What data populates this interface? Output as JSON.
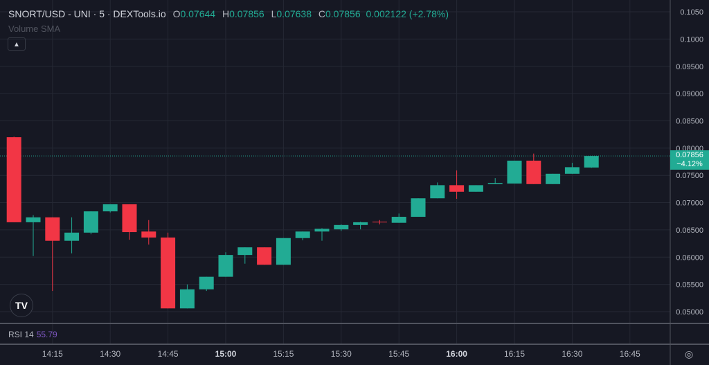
{
  "legend": {
    "title": "SNORT/USD - UNI · 5 · DEXTools.io",
    "o_label": "O",
    "o": "0.07644",
    "h_label": "H",
    "h": "0.07856",
    "l_label": "L",
    "l": "0.07638",
    "c_label": "C",
    "c": "0.07856",
    "change": "0.002122 (+2.78%)",
    "volume_sma": "Volume SMA",
    "collapse_icon": "chevron-up-icon"
  },
  "rsi": {
    "label": "RSI 14",
    "value": "55.79"
  },
  "price_tag": {
    "price": "0.07856",
    "change": "−4.12%"
  },
  "logo": "TV",
  "colors": {
    "background": "#161823",
    "up": "#22ab94",
    "down": "#f23645",
    "grid": "#252834",
    "rsi": "#7e57c2"
  },
  "chart_data": {
    "type": "candlestick",
    "interval_minutes": 5,
    "ylim": [
      0.048,
      0.106
    ],
    "y_ticks": [
      "0.05000",
      "0.05500",
      "0.06000",
      "0.06500",
      "0.07000",
      "0.07500",
      "0.08000",
      "0.08500",
      "0.09000",
      "0.09500",
      "0.1000",
      "0.1050"
    ],
    "x_ticks": [
      {
        "label": "14:15",
        "bold": false
      },
      {
        "label": "14:30",
        "bold": false
      },
      {
        "label": "14:45",
        "bold": false
      },
      {
        "label": "15:00",
        "bold": true
      },
      {
        "label": "15:15",
        "bold": false
      },
      {
        "label": "15:30",
        "bold": false
      },
      {
        "label": "15:45",
        "bold": false
      },
      {
        "label": "16:00",
        "bold": true
      },
      {
        "label": "16:15",
        "bold": false
      },
      {
        "label": "16:30",
        "bold": false
      },
      {
        "label": "16:45",
        "bold": false
      }
    ],
    "x_range": [
      "14:00",
      "16:55"
    ],
    "last_price": 0.07856,
    "grid": true,
    "candles": [
      {
        "t": "14:05",
        "o": 0.082,
        "h": 0.0821,
        "l": 0.0664,
        "c": 0.0664
      },
      {
        "t": "14:10",
        "o": 0.0664,
        "h": 0.0677,
        "l": 0.0602,
        "c": 0.0673
      },
      {
        "t": "14:15",
        "o": 0.0673,
        "h": 0.0673,
        "l": 0.0538,
        "c": 0.063
      },
      {
        "t": "14:20",
        "o": 0.063,
        "h": 0.0673,
        "l": 0.0607,
        "c": 0.0645
      },
      {
        "t": "14:25",
        "o": 0.0645,
        "h": 0.0684,
        "l": 0.0642,
        "c": 0.0684
      },
      {
        "t": "14:30",
        "o": 0.0684,
        "h": 0.0697,
        "l": 0.0682,
        "c": 0.0697
      },
      {
        "t": "14:35",
        "o": 0.0697,
        "h": 0.0697,
        "l": 0.0632,
        "c": 0.0646
      },
      {
        "t": "14:40",
        "o": 0.0647,
        "h": 0.0668,
        "l": 0.0623,
        "c": 0.0636
      },
      {
        "t": "14:45",
        "o": 0.0636,
        "h": 0.0645,
        "l": 0.0506,
        "c": 0.0506
      },
      {
        "t": "14:50",
        "o": 0.0506,
        "h": 0.055,
        "l": 0.0506,
        "c": 0.0541
      },
      {
        "t": "14:55",
        "o": 0.0541,
        "h": 0.0564,
        "l": 0.0538,
        "c": 0.0564
      },
      {
        "t": "15:00",
        "o": 0.0564,
        "h": 0.0609,
        "l": 0.0564,
        "c": 0.0604
      },
      {
        "t": "15:05",
        "o": 0.0604,
        "h": 0.0618,
        "l": 0.0588,
        "c": 0.0618
      },
      {
        "t": "15:10",
        "o": 0.0618,
        "h": 0.0618,
        "l": 0.0586,
        "c": 0.0586
      },
      {
        "t": "15:15",
        "o": 0.0586,
        "h": 0.0635,
        "l": 0.0586,
        "c": 0.0635
      },
      {
        "t": "15:20",
        "o": 0.0635,
        "h": 0.0647,
        "l": 0.0631,
        "c": 0.0647
      },
      {
        "t": "15:25",
        "o": 0.0647,
        "h": 0.0653,
        "l": 0.063,
        "c": 0.0652
      },
      {
        "t": "15:30",
        "o": 0.0651,
        "h": 0.066,
        "l": 0.0648,
        "c": 0.0659
      },
      {
        "t": "15:35",
        "o": 0.0659,
        "h": 0.0665,
        "l": 0.0651,
        "c": 0.0664
      },
      {
        "t": "15:40",
        "o": 0.0665,
        "h": 0.0668,
        "l": 0.066,
        "c": 0.0664
      },
      {
        "t": "15:45",
        "o": 0.0663,
        "h": 0.068,
        "l": 0.0663,
        "c": 0.0674
      },
      {
        "t": "15:50",
        "o": 0.0674,
        "h": 0.0708,
        "l": 0.0674,
        "c": 0.0708
      },
      {
        "t": "15:55",
        "o": 0.0708,
        "h": 0.0737,
        "l": 0.0708,
        "c": 0.0732
      },
      {
        "t": "16:00",
        "o": 0.0732,
        "h": 0.0759,
        "l": 0.0707,
        "c": 0.072
      },
      {
        "t": "16:05",
        "o": 0.072,
        "h": 0.0732,
        "l": 0.072,
        "c": 0.0732
      },
      {
        "t": "16:10",
        "o": 0.0734,
        "h": 0.0745,
        "l": 0.0734,
        "c": 0.0736
      },
      {
        "t": "16:15",
        "o": 0.0735,
        "h": 0.0777,
        "l": 0.0735,
        "c": 0.0777
      },
      {
        "t": "16:20",
        "o": 0.0777,
        "h": 0.079,
        "l": 0.0734,
        "c": 0.0734
      },
      {
        "t": "16:25",
        "o": 0.0734,
        "h": 0.0753,
        "l": 0.0734,
        "c": 0.0753
      },
      {
        "t": "16:30",
        "o": 0.0753,
        "h": 0.0773,
        "l": 0.0753,
        "c": 0.0765
      },
      {
        "t": "16:35",
        "o": 0.07644,
        "h": 0.07856,
        "l": 0.07638,
        "c": 0.07856
      }
    ]
  }
}
